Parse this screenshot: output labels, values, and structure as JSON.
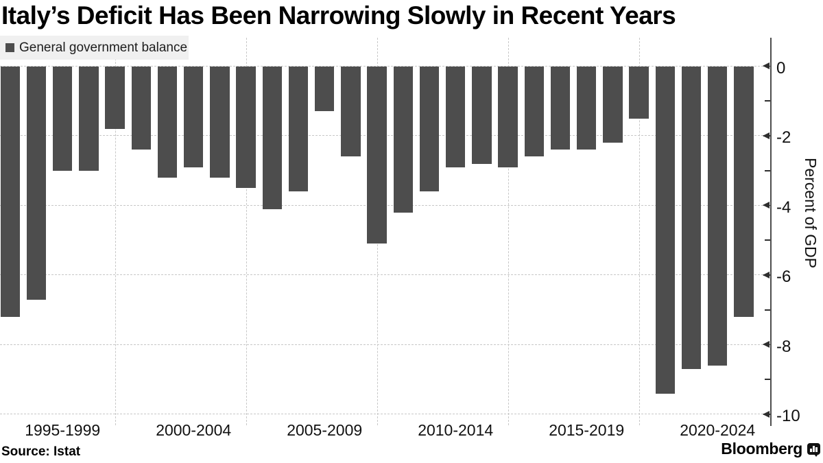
{
  "title": "Italy’s Deficit Has Been Narrowing Slowly in Recent Years",
  "legend": {
    "label": "General government balance"
  },
  "axes": {
    "y_label": "Percent of GDP",
    "y_ticks": [
      "0",
      "-2",
      "-4",
      "-6",
      "-8",
      "-10"
    ],
    "y_minor_ticks": [
      -1,
      -3,
      -5,
      -7,
      -9
    ],
    "x_group_labels": [
      "1995-1999",
      "2000-2004",
      "2005-2009",
      "2010-2014",
      "2015-2019",
      "2020-2024"
    ]
  },
  "footer": {
    "source": "Source: Istat",
    "brand": "Bloomberg"
  },
  "colors": {
    "bar": "#4d4d4d",
    "grid": "#c7c7c7",
    "axis": "#2e2e2e",
    "legend_bg": "#f0f0f0",
    "text": "#111111"
  },
  "chart_data": {
    "type": "bar",
    "title": "Italy’s Deficit Has Been Narrowing Slowly in Recent Years",
    "series_name": "General government balance",
    "x": [
      1995,
      1996,
      1997,
      1998,
      1999,
      2000,
      2001,
      2002,
      2003,
      2004,
      2005,
      2006,
      2007,
      2008,
      2009,
      2010,
      2011,
      2012,
      2013,
      2014,
      2015,
      2016,
      2017,
      2018,
      2019,
      2020,
      2021,
      2022,
      2023
    ],
    "values": [
      -7.2,
      -6.7,
      -3.0,
      -3.0,
      -1.8,
      -2.4,
      -3.2,
      -2.9,
      -3.2,
      -3.5,
      -4.1,
      -3.6,
      -1.3,
      -2.6,
      -5.1,
      -4.2,
      -3.6,
      -2.9,
      -2.8,
      -2.9,
      -2.6,
      -2.4,
      -2.4,
      -2.2,
      -1.5,
      -9.4,
      -8.7,
      -8.6,
      -7.2
    ],
    "xlabel": "",
    "ylabel": "Percent of GDP",
    "ylim": [
      -10.4,
      0
    ],
    "y_major_step": 2,
    "grid": "dashed",
    "legend_position": "top-left",
    "source": "Source: Istat",
    "brand": "Bloomberg"
  }
}
